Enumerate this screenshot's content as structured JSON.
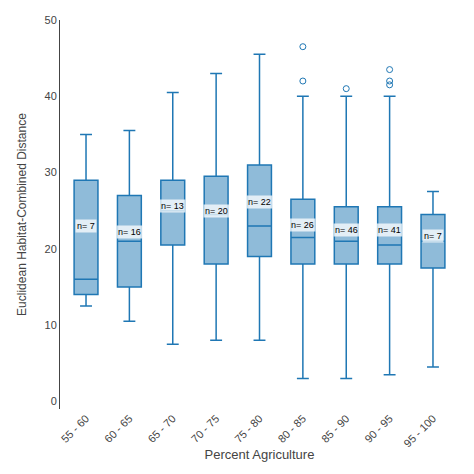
{
  "chart_data": {
    "type": "box",
    "categories": [
      "55 - 60",
      "60 - 65",
      "65 - 70",
      "70 - 75",
      "75 - 80",
      "80 - 85",
      "85 - 90",
      "90 - 95",
      "95 - 100"
    ],
    "annotations": [
      "n= 7",
      "n= 16",
      "n= 13",
      "n= 20",
      "n= 22",
      "n= 26",
      "n= 46",
      "n= 41",
      "n= 7"
    ],
    "medians": [
      16.0,
      21.0,
      25.0,
      24.5,
      23.0,
      21.5,
      21.0,
      20.5,
      21.0
    ],
    "q1": [
      14.0,
      15.0,
      20.5,
      18.0,
      19.0,
      18.0,
      18.0,
      18.0,
      17.5
    ],
    "q3": [
      29.0,
      27.0,
      29.0,
      29.5,
      31.0,
      26.5,
      25.5,
      25.5,
      24.5
    ],
    "whisker_low": [
      12.5,
      10.5,
      7.5,
      8.0,
      8.0,
      3.0,
      3.0,
      3.5,
      4.5
    ],
    "whisker_high": [
      35.0,
      35.5,
      40.5,
      43.0,
      45.5,
      40.0,
      40.0,
      40.0,
      27.5
    ],
    "outliers": [
      [],
      [],
      [],
      [],
      [],
      [
        42.0,
        46.5
      ],
      [
        41.0
      ],
      [
        41.5,
        42.0,
        43.5
      ],
      []
    ],
    "xlabel": "Percent Agriculture",
    "ylabel": "Euclidean Habitat-Combined Distance",
    "ylim": [
      -1,
      50
    ],
    "yticks": [
      0,
      10,
      20,
      30,
      40,
      50
    ],
    "grid": false
  }
}
